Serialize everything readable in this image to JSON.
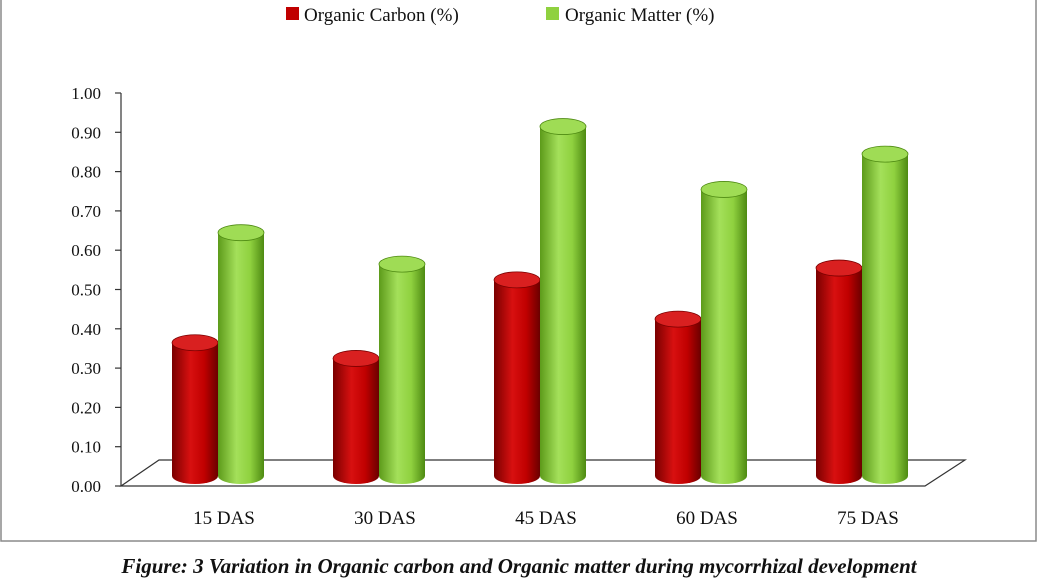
{
  "chart_data": {
    "type": "bar",
    "style": "3d-cylinder",
    "categories": [
      "15 DAS",
      "30 DAS",
      "45 DAS",
      "60 DAS",
      "75 DAS"
    ],
    "series": [
      {
        "name": "Organic Carbon (%)",
        "color": "#c00000",
        "values": [
          0.39,
          0.35,
          0.55,
          0.45,
          0.58
        ]
      },
      {
        "name": "Organic Matter (%)",
        "color": "#8fd13f",
        "values": [
          0.67,
          0.59,
          0.94,
          0.78,
          0.87
        ]
      }
    ],
    "yticks": [
      "0.00",
      "0.10",
      "0.20",
      "0.30",
      "0.40",
      "0.50",
      "0.60",
      "0.70",
      "0.80",
      "0.90",
      "1.00"
    ],
    "ylim": [
      0,
      1.0
    ],
    "legend_position": "top-center",
    "grid": false,
    "title": "",
    "xlabel": "",
    "ylabel": ""
  },
  "caption": "Figure: 3 Variation in Organic carbon and Organic matter during mycorrhizal development"
}
